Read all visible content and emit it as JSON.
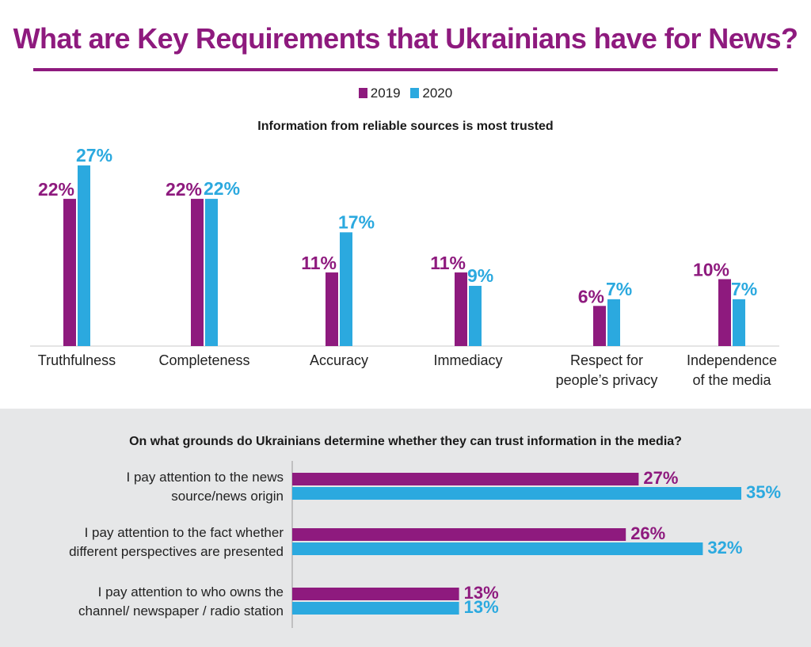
{
  "title": "What are Key Requirements that Ukrainians have for News?",
  "legend": [
    {
      "label": "2019",
      "color": "#8e1a7e"
    },
    {
      "label": "2020",
      "color": "#2ba9df"
    }
  ],
  "colors": {
    "s2019": "#8e1a7e",
    "s2020": "#2ba9df",
    "panel_bg": "#e6e7e8"
  },
  "chart_data": [
    {
      "type": "bar",
      "title": "Information from reliable sources is most trusted",
      "categories": [
        [
          "Truthfulness"
        ],
        [
          "Completeness"
        ],
        [
          "Accuracy"
        ],
        [
          "Immediacy"
        ],
        [
          "Respect for",
          "people’s privacy"
        ],
        [
          "Independence",
          "of the media"
        ]
      ],
      "series": [
        {
          "name": "2019",
          "values": [
            22,
            22,
            11,
            11,
            6,
            10
          ]
        },
        {
          "name": "2020",
          "values": [
            27,
            22,
            17,
            9,
            7,
            7
          ]
        }
      ],
      "value_labels": {
        "2019": [
          "22%",
          "22%",
          "11%",
          "11%",
          "6%",
          "10%"
        ],
        "2020": [
          "27%",
          "22%",
          "17%",
          "9%",
          "7%",
          "7%"
        ]
      },
      "ylim": [
        0,
        30
      ]
    },
    {
      "type": "bar",
      "orientation": "horizontal",
      "title": "On what grounds do Ukrainians determine whether they can trust information in the media?",
      "categories": [
        [
          "I pay attention to the news",
          "source/news origin"
        ],
        [
          "I pay attention to the fact whether",
          "different perspectives are presented"
        ],
        [
          "I pay attention to who owns the",
          "channel/ newspaper / radio station"
        ]
      ],
      "series": [
        {
          "name": "2019",
          "values": [
            27,
            26,
            13
          ]
        },
        {
          "name": "2020",
          "values": [
            35,
            32,
            13
          ]
        }
      ],
      "value_labels": {
        "2019": [
          "27%",
          "26%",
          "13%"
        ],
        "2020": [
          "35%",
          "32%",
          "13%"
        ]
      },
      "xlim": [
        0,
        40
      ]
    }
  ]
}
